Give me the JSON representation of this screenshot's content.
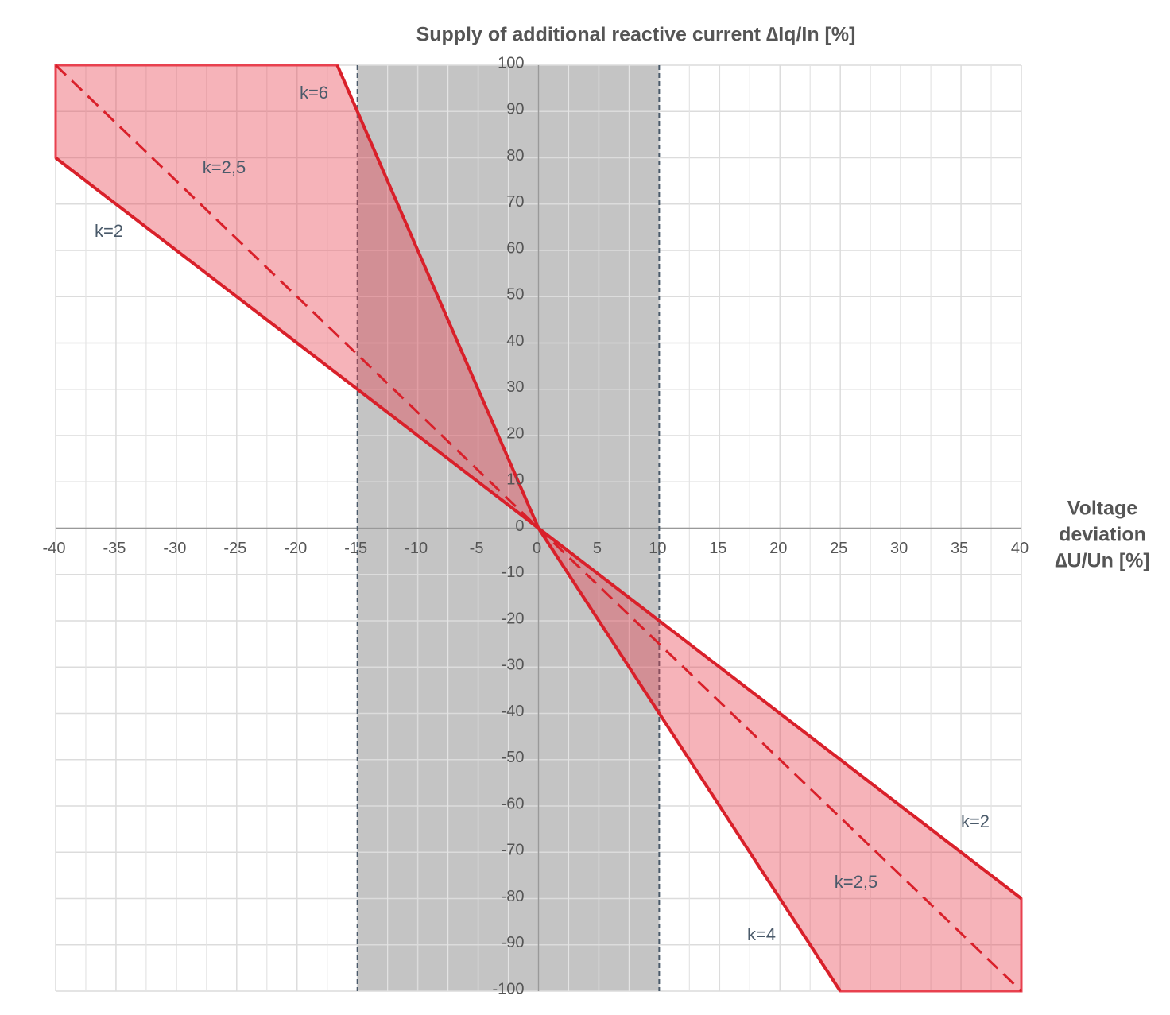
{
  "chart_data": {
    "type": "line",
    "title": "Supply of additional reactive current ∆Iq/In [%]",
    "x_label": [
      "Voltage",
      "deviation",
      "∆U/Un  [%]"
    ],
    "xlim": [
      -40,
      40
    ],
    "ylim": [
      -100,
      100
    ],
    "xticks": [
      -40,
      -35,
      -30,
      -25,
      -20,
      -15,
      -10,
      -5,
      0,
      5,
      10,
      15,
      20,
      25,
      30,
      35,
      40
    ],
    "x_minor_grid": [
      -37.5,
      -32.5,
      -27.5,
      -22.5,
      -17.5,
      -12.5,
      -7.5,
      -2.5,
      2.5,
      7.5,
      12.5,
      17.5,
      22.5,
      27.5,
      32.5,
      37.5
    ],
    "yticks": [
      -100,
      -90,
      -80,
      -70,
      -60,
      -50,
      -40,
      -30,
      -20,
      -10,
      0,
      10,
      20,
      30,
      40,
      50,
      60,
      70,
      80,
      90,
      100
    ],
    "grid": true,
    "shaded_x": [
      -15,
      10
    ],
    "shaded_color": "#c4c4c4",
    "areas": [
      {
        "x": [
          -40,
          -16.67,
          0,
          -40
        ],
        "values": [
          100,
          100,
          0,
          80
        ],
        "color": "#e8414f"
      },
      {
        "x": [
          0,
          40,
          40,
          25
        ],
        "values": [
          0,
          -80,
          -100,
          -100
        ],
        "color": "#e8414f"
      }
    ],
    "series": [
      {
        "name": "k=2",
        "color": "#d9202a",
        "dashed": false,
        "x": [
          -40,
          0,
          40
        ],
        "values": [
          80,
          0,
          -80
        ]
      },
      {
        "name": "k=2,5",
        "color": "#d9202a",
        "dashed": true,
        "x": [
          -40,
          40
        ],
        "values": [
          100,
          -100
        ]
      },
      {
        "name": "k=6",
        "color": "#d9202a",
        "dashed": false,
        "x": [
          -16.67,
          0
        ],
        "values": [
          100,
          0
        ]
      },
      {
        "name": "k=4",
        "color": "#d9202a",
        "dashed": false,
        "x": [
          0,
          25
        ],
        "values": [
          0,
          -100
        ]
      }
    ]
  }
}
